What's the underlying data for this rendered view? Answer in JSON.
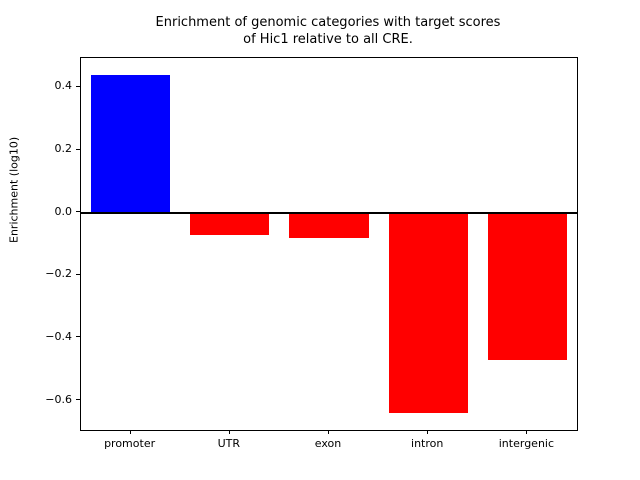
{
  "title": {
    "line1": "Enrichment of genomic categories with target scores",
    "line2": "of Hic1 relative to all CRE."
  },
  "chart_data": {
    "type": "bar",
    "title": "Enrichment of genomic categories with target scores\nof Hic1 relative to all CRE.",
    "categories": [
      "promoter",
      "UTR",
      "exon",
      "intron",
      "intergenic"
    ],
    "values": [
      0.44,
      -0.07,
      -0.08,
      -0.64,
      -0.47
    ],
    "bar_colors": [
      "#0000ff",
      "#ff0000",
      "#ff0000",
      "#ff0000",
      "#ff0000"
    ],
    "xlabel": "",
    "ylabel": "Enrichment (log10)",
    "ylim": [
      -0.694,
      0.494
    ],
    "yticks": [
      0.4,
      0.2,
      0.0,
      -0.2,
      -0.4,
      -0.6
    ],
    "ytick_labels": [
      "0.4",
      "0.2",
      "0.0",
      "−0.2",
      "−0.4",
      "−0.6"
    ],
    "bar_width_fraction": 0.8,
    "zero_line": true,
    "grid": false,
    "legend": null,
    "positive_color": "#0000ff",
    "negative_color": "#ff0000"
  }
}
